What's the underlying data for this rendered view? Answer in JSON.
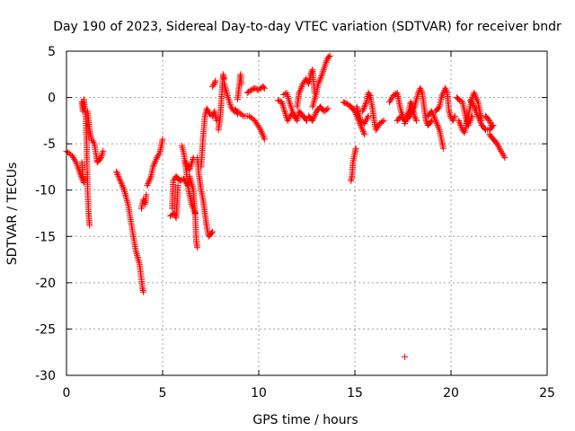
{
  "chart_data": {
    "type": "scatter",
    "title": "Day 190 of 2023, Sidereal Day-to-day VTEC variation (SDTVAR) for receiver bndr",
    "xlabel": "GPS time / hours",
    "ylabel": "SDTVAR / TECUs",
    "xlim": [
      0,
      25
    ],
    "ylim": [
      -30,
      5
    ],
    "xticks": [
      0,
      5,
      10,
      15,
      20,
      25
    ],
    "yticks": [
      5,
      0,
      -5,
      -10,
      -15,
      -20,
      -25,
      -30
    ],
    "grid": true,
    "marker": "+",
    "color": "#ff0000",
    "segments": [
      [
        [
          0.0,
          -5.8
        ],
        [
          0.3,
          -6.3
        ],
        [
          0.5,
          -7.0
        ],
        [
          0.7,
          -8.2
        ],
        [
          0.9,
          -9.2
        ]
      ],
      [
        [
          0.8,
          -7.0
        ],
        [
          0.85,
          -8.5
        ],
        [
          0.9,
          -9.0
        ]
      ],
      [
        [
          0.8,
          -0.5
        ],
        [
          0.85,
          -1.5
        ],
        [
          0.9,
          -0.2
        ],
        [
          1.0,
          -2.0
        ],
        [
          1.05,
          -5.0
        ],
        [
          1.1,
          -10.0
        ],
        [
          1.15,
          -12.5
        ],
        [
          1.2,
          -13.8
        ]
      ],
      [
        [
          1.1,
          -1.5
        ],
        [
          1.2,
          -3.5
        ],
        [
          1.3,
          -4.5
        ],
        [
          1.45,
          -5.0
        ],
        [
          1.6,
          -7.0
        ],
        [
          1.8,
          -6.5
        ],
        [
          1.9,
          -5.8
        ]
      ],
      [
        [
          2.6,
          -8.0
        ],
        [
          2.8,
          -9.0
        ],
        [
          3.0,
          -10.0
        ],
        [
          3.2,
          -11.5
        ],
        [
          3.4,
          -14.0
        ],
        [
          3.6,
          -16.5
        ],
        [
          3.8,
          -18.0
        ],
        [
          3.95,
          -20.5
        ],
        [
          4.0,
          -21.0
        ]
      ],
      [
        [
          3.9,
          -12.0
        ],
        [
          4.0,
          -11.0
        ],
        [
          4.1,
          -11.5
        ],
        [
          4.15,
          -10.5
        ]
      ],
      [
        [
          4.2,
          -9.5
        ],
        [
          4.4,
          -8.5
        ],
        [
          4.5,
          -7.5
        ],
        [
          4.7,
          -6.5
        ],
        [
          4.85,
          -6.0
        ],
        [
          5.0,
          -4.5
        ]
      ],
      [
        [
          5.4,
          -12.8
        ],
        [
          5.6,
          -12.5
        ],
        [
          5.7,
          -13.0
        ],
        [
          5.75,
          -11.5
        ],
        [
          5.8,
          -9.5
        ]
      ],
      [
        [
          5.5,
          -12.0
        ],
        [
          5.55,
          -9.0
        ],
        [
          5.7,
          -8.5
        ],
        [
          5.9,
          -9.0
        ],
        [
          6.1,
          -8.8
        ],
        [
          6.3,
          -9.5
        ]
      ],
      [
        [
          6.0,
          -5.2
        ],
        [
          6.1,
          -6.0
        ],
        [
          6.2,
          -7.5
        ],
        [
          6.35,
          -10.0
        ],
        [
          6.5,
          -11.5
        ],
        [
          6.7,
          -12.5
        ]
      ],
      [
        [
          6.4,
          -8.5
        ],
        [
          6.6,
          -10.0
        ],
        [
          6.7,
          -13.0
        ],
        [
          6.75,
          -15.5
        ],
        [
          6.8,
          -16.2
        ]
      ],
      [
        [
          6.2,
          -7.0
        ],
        [
          6.4,
          -7.8
        ],
        [
          6.6,
          -6.5
        ]
      ],
      [
        [
          6.8,
          -6.5
        ],
        [
          6.9,
          -8.5
        ],
        [
          7.0,
          -10.0
        ],
        [
          7.1,
          -11.0
        ],
        [
          7.2,
          -12.5
        ],
        [
          7.3,
          -14.0
        ],
        [
          7.4,
          -15.0
        ],
        [
          7.6,
          -14.5
        ]
      ],
      [
        [
          7.0,
          -7.5
        ],
        [
          7.1,
          -4.5
        ],
        [
          7.2,
          -2.0
        ],
        [
          7.3,
          -1.2
        ],
        [
          7.45,
          -1.8
        ],
        [
          7.6,
          -2.0
        ],
        [
          7.7,
          -1.5
        ],
        [
          7.8,
          -2.5
        ]
      ],
      [
        [
          7.6,
          1.2
        ],
        [
          7.7,
          1.5
        ],
        [
          7.75,
          1.8
        ]
      ],
      [
        [
          7.9,
          -3.5
        ],
        [
          8.0,
          -2.0
        ],
        [
          8.05,
          -0.5
        ],
        [
          8.15,
          2.5
        ],
        [
          8.2,
          2.0
        ]
      ],
      [
        [
          8.2,
          1.5
        ],
        [
          8.4,
          0.0
        ],
        [
          8.55,
          -1.0
        ],
        [
          8.7,
          -1.5
        ],
        [
          8.8,
          -1.3
        ],
        [
          8.9,
          -1.8
        ]
      ],
      [
        [
          8.9,
          -0.2
        ],
        [
          9.0,
          1.5
        ],
        [
          9.05,
          2.5
        ],
        [
          9.1,
          1.5
        ]
      ],
      [
        [
          8.9,
          -1.5
        ],
        [
          9.2,
          -2.0
        ],
        [
          9.5,
          -2.0
        ],
        [
          9.8,
          -2.5
        ],
        [
          10.1,
          -3.5
        ],
        [
          10.3,
          -4.5
        ]
      ],
      [
        [
          9.4,
          0.5
        ],
        [
          9.6,
          0.8
        ],
        [
          9.8,
          1.0
        ],
        [
          10.0,
          0.8
        ],
        [
          10.2,
          1.2
        ],
        [
          10.3,
          1.0
        ]
      ],
      [
        [
          11.0,
          -0.3
        ],
        [
          11.2,
          -0.5
        ],
        [
          11.3,
          -1.2
        ],
        [
          11.5,
          -2.5
        ],
        [
          11.7,
          -1.8
        ]
      ],
      [
        [
          11.3,
          0.3
        ],
        [
          11.45,
          0.5
        ],
        [
          11.6,
          -0.5
        ],
        [
          11.75,
          -1.5
        ],
        [
          11.9,
          -2.2
        ]
      ],
      [
        [
          11.8,
          -1.8
        ],
        [
          12.0,
          -2.5
        ],
        [
          12.1,
          -1.5
        ],
        [
          12.3,
          -2.0
        ],
        [
          12.5,
          -2.5
        ]
      ],
      [
        [
          12.0,
          -1.0
        ],
        [
          12.1,
          0.5
        ],
        [
          12.2,
          1.0
        ],
        [
          12.3,
          1.5
        ],
        [
          12.45,
          2.0
        ],
        [
          12.6,
          1.5
        ],
        [
          12.7,
          2.5
        ],
        [
          12.8,
          3.0
        ],
        [
          12.9,
          0.5
        ]
      ],
      [
        [
          12.6,
          -2.0
        ],
        [
          12.8,
          -2.5
        ],
        [
          13.0,
          -1.5
        ],
        [
          13.2,
          -1.0
        ],
        [
          13.4,
          -1.5
        ],
        [
          13.6,
          -1.2
        ]
      ],
      [
        [
          12.8,
          -1.0
        ],
        [
          13.0,
          0.5
        ],
        [
          13.1,
          1.5
        ],
        [
          13.3,
          2.5
        ],
        [
          13.4,
          3.2
        ],
        [
          13.5,
          3.8
        ],
        [
          13.6,
          4.3
        ],
        [
          13.7,
          4.5
        ]
      ],
      [
        [
          14.4,
          -0.5
        ],
        [
          14.6,
          -0.7
        ],
        [
          14.8,
          -1.0
        ],
        [
          15.0,
          -1.5
        ],
        [
          15.2,
          -2.5
        ],
        [
          15.4,
          -3.5
        ],
        [
          15.5,
          -4.0
        ]
      ],
      [
        [
          14.8,
          -9.0
        ],
        [
          14.85,
          -8.5
        ],
        [
          14.9,
          -7.0
        ],
        [
          15.0,
          -6.0
        ],
        [
          15.05,
          -5.5
        ]
      ],
      [
        [
          15.1,
          -1.0
        ],
        [
          15.3,
          -2.5
        ],
        [
          15.5,
          -2.8
        ],
        [
          15.7,
          -2.0
        ]
      ],
      [
        [
          15.4,
          -1.5
        ],
        [
          15.6,
          -0.5
        ],
        [
          15.7,
          0.5
        ],
        [
          15.8,
          0.2
        ],
        [
          15.9,
          -1.0
        ],
        [
          16.0,
          -2.5
        ],
        [
          16.1,
          -3.5
        ],
        [
          16.3,
          -2.8
        ],
        [
          16.5,
          -2.5
        ]
      ],
      [
        [
          16.8,
          -0.5
        ],
        [
          17.0,
          0.2
        ],
        [
          17.2,
          0.5
        ],
        [
          17.3,
          -0.5
        ],
        [
          17.4,
          -1.5
        ],
        [
          17.5,
          -2.0
        ]
      ],
      [
        [
          17.2,
          -2.5
        ],
        [
          17.4,
          -2.0
        ],
        [
          17.6,
          -2.5
        ],
        [
          17.8,
          -2.2
        ],
        [
          18.0,
          -1.5
        ]
      ],
      [
        [
          17.6,
          -2.8
        ],
        [
          17.8,
          -1.5
        ],
        [
          17.9,
          -0.5
        ],
        [
          18.0,
          -1.0
        ],
        [
          18.1,
          -2.0
        ],
        [
          18.2,
          -2.5
        ]
      ],
      [
        [
          17.7,
          -2.0
        ],
        [
          17.9,
          -1.5
        ],
        [
          18.1,
          -1.0
        ],
        [
          18.3,
          0.5
        ],
        [
          18.4,
          1.0
        ],
        [
          18.5,
          0.5
        ],
        [
          18.6,
          -1.0
        ],
        [
          18.7,
          -2.5
        ],
        [
          18.8,
          -3.0
        ],
        [
          19.0,
          -2.5
        ]
      ],
      [
        [
          18.8,
          -2.0
        ],
        [
          19.0,
          -1.5
        ],
        [
          19.2,
          -2.5
        ],
        [
          19.4,
          -3.5
        ],
        [
          19.5,
          -4.5
        ],
        [
          19.6,
          -5.5
        ]
      ],
      [
        [
          19.2,
          -1.5
        ],
        [
          19.4,
          -1.0
        ],
        [
          19.5,
          0.0
        ],
        [
          19.6,
          0.5
        ],
        [
          19.7,
          1.0
        ],
        [
          19.8,
          0.5
        ],
        [
          19.9,
          -1.5
        ],
        [
          20.0,
          -2.2
        ],
        [
          20.1,
          -2.5
        ],
        [
          20.2,
          -2.0
        ]
      ],
      [
        [
          17.6,
          -28.0
        ]
      ],
      [
        [
          20.3,
          0.0
        ],
        [
          20.45,
          -0.3
        ],
        [
          20.6,
          -0.5
        ],
        [
          20.7,
          -1.5
        ],
        [
          20.8,
          -2.5
        ],
        [
          20.9,
          -3.0
        ],
        [
          21.0,
          -2.5
        ],
        [
          21.1,
          -2.0
        ]
      ],
      [
        [
          20.4,
          -2.5
        ],
        [
          20.6,
          -3.5
        ],
        [
          20.7,
          -3.8
        ],
        [
          20.8,
          -3.0
        ],
        [
          20.9,
          -2.0
        ],
        [
          21.0,
          -1.0
        ],
        [
          21.1,
          0.0
        ],
        [
          21.2,
          0.5
        ],
        [
          21.4,
          -0.5
        ],
        [
          21.5,
          -1.5
        ],
        [
          21.6,
          -2.5
        ]
      ],
      [
        [
          21.0,
          -0.3
        ],
        [
          21.2,
          -1.0
        ],
        [
          21.4,
          -2.0
        ],
        [
          21.6,
          -3.0
        ],
        [
          21.8,
          -3.5
        ],
        [
          22.0,
          -3.5
        ],
        [
          22.2,
          -3.0
        ]
      ],
      [
        [
          21.8,
          -2.0
        ],
        [
          22.0,
          -2.5
        ],
        [
          22.1,
          -3.0
        ]
      ],
      [
        [
          22.0,
          -4.0
        ],
        [
          22.2,
          -4.5
        ],
        [
          22.4,
          -5.0
        ],
        [
          22.6,
          -5.8
        ],
        [
          22.8,
          -6.5
        ]
      ]
    ]
  }
}
